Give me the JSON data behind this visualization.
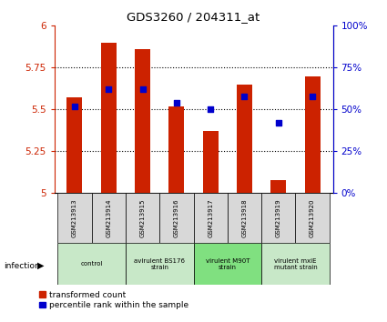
{
  "title": "GDS3260 / 204311_at",
  "samples": [
    "GSM213913",
    "GSM213914",
    "GSM213915",
    "GSM213916",
    "GSM213917",
    "GSM213918",
    "GSM213919",
    "GSM213920"
  ],
  "red_values": [
    5.57,
    5.9,
    5.86,
    5.52,
    5.37,
    5.65,
    5.08,
    5.7
  ],
  "blue_values": [
    52,
    62,
    62,
    54,
    50,
    58,
    42,
    58
  ],
  "ylim_left": [
    5.0,
    6.0
  ],
  "ylim_right": [
    0,
    100
  ],
  "yticks_left": [
    5.0,
    5.25,
    5.5,
    5.75,
    6.0
  ],
  "ytick_labels_left": [
    "5",
    "5.25",
    "5.5",
    "5.75",
    "6"
  ],
  "yticks_right": [
    0,
    25,
    50,
    75,
    100
  ],
  "ytick_labels_right": [
    "0%",
    "25%",
    "50%",
    "75%",
    "100%"
  ],
  "groups": [
    {
      "label": "control",
      "start": 0,
      "end": 2,
      "color": "#c8e8c8"
    },
    {
      "label": "avirulent BS176\nstrain",
      "start": 2,
      "end": 4,
      "color": "#c8e8c8"
    },
    {
      "label": "virulent M90T\nstrain",
      "start": 4,
      "end": 6,
      "color": "#80e080"
    },
    {
      "label": "virulent mxiE\nmutant strain",
      "start": 6,
      "end": 8,
      "color": "#c8e8c8"
    }
  ],
  "bar_color": "#cc2200",
  "dot_color": "#0000cc",
  "infection_label": "infection",
  "legend_red": "transformed count",
  "legend_blue": "percentile rank within the sample",
  "bar_width": 0.45,
  "left_tick_color": "#cc2200",
  "right_tick_color": "#0000cc",
  "sample_box_color": "#d8d8d8",
  "gridline_ticks": [
    5.25,
    5.5,
    5.75
  ]
}
